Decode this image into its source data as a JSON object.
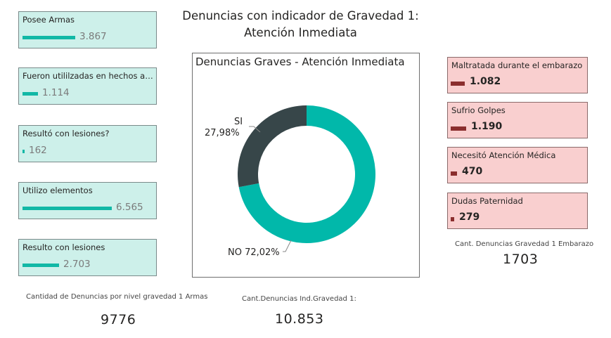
{
  "title_line1": "Denuncias con indicador de Gravedad 1:",
  "title_line2": "Atención Inmediata",
  "left_cards": [
    {
      "label": "Posee Armas",
      "value": "3.867",
      "fraction": 0.59
    },
    {
      "label": "Fueron utililzadas en hechos ant...",
      "value": "1.114",
      "fraction": 0.17
    },
    {
      "label": "Resultó con lesiones?",
      "value": "162",
      "fraction": 0.025
    },
    {
      "label": "Utilizo elementos",
      "value": "6.565",
      "fraction": 1.0
    },
    {
      "label": "Resulto con lesiones",
      "value": "2.703",
      "fraction": 0.41
    }
  ],
  "right_cards": [
    {
      "label": "Maltratada durante el embarazo",
      "value": "1.082",
      "fraction": 0.91
    },
    {
      "label": "Sufrio Golpes",
      "value": "1.190",
      "fraction": 1.0
    },
    {
      "label": "Necesitó Atención Médica",
      "value": "470",
      "fraction": 0.39
    },
    {
      "label": "Dudas Paternidad",
      "value": "279",
      "fraction": 0.23
    }
  ],
  "kpis": {
    "armas_label": "Cantidad de Denuncias por nivel gravedad 1 Armas",
    "armas_value": "9776",
    "total_label": "Cant.Denuncias Ind.Gravedad 1:",
    "total_value": "10.853",
    "embarazo_label": "Cant. Denuncias Gravedad 1 Embarazo",
    "embarazo_value": "1703"
  },
  "colors": {
    "teal_card_bg": "#cdf0ea",
    "teal_bar": "#12b8a6",
    "pink_card_bg": "#f9cfcf",
    "pink_bar": "#8b2e2e",
    "donut_no": "#01b8aa",
    "donut_si": "#374649"
  },
  "chart_data": {
    "type": "pie",
    "title": "Denuncias Graves - Atención Inmediata",
    "slices": [
      {
        "label": "SI",
        "value": 27.98,
        "display": "27,98%",
        "color": "#374649"
      },
      {
        "label": "NO",
        "value": 72.02,
        "display": "72,02%",
        "color": "#01b8aa"
      }
    ],
    "donut": true
  }
}
